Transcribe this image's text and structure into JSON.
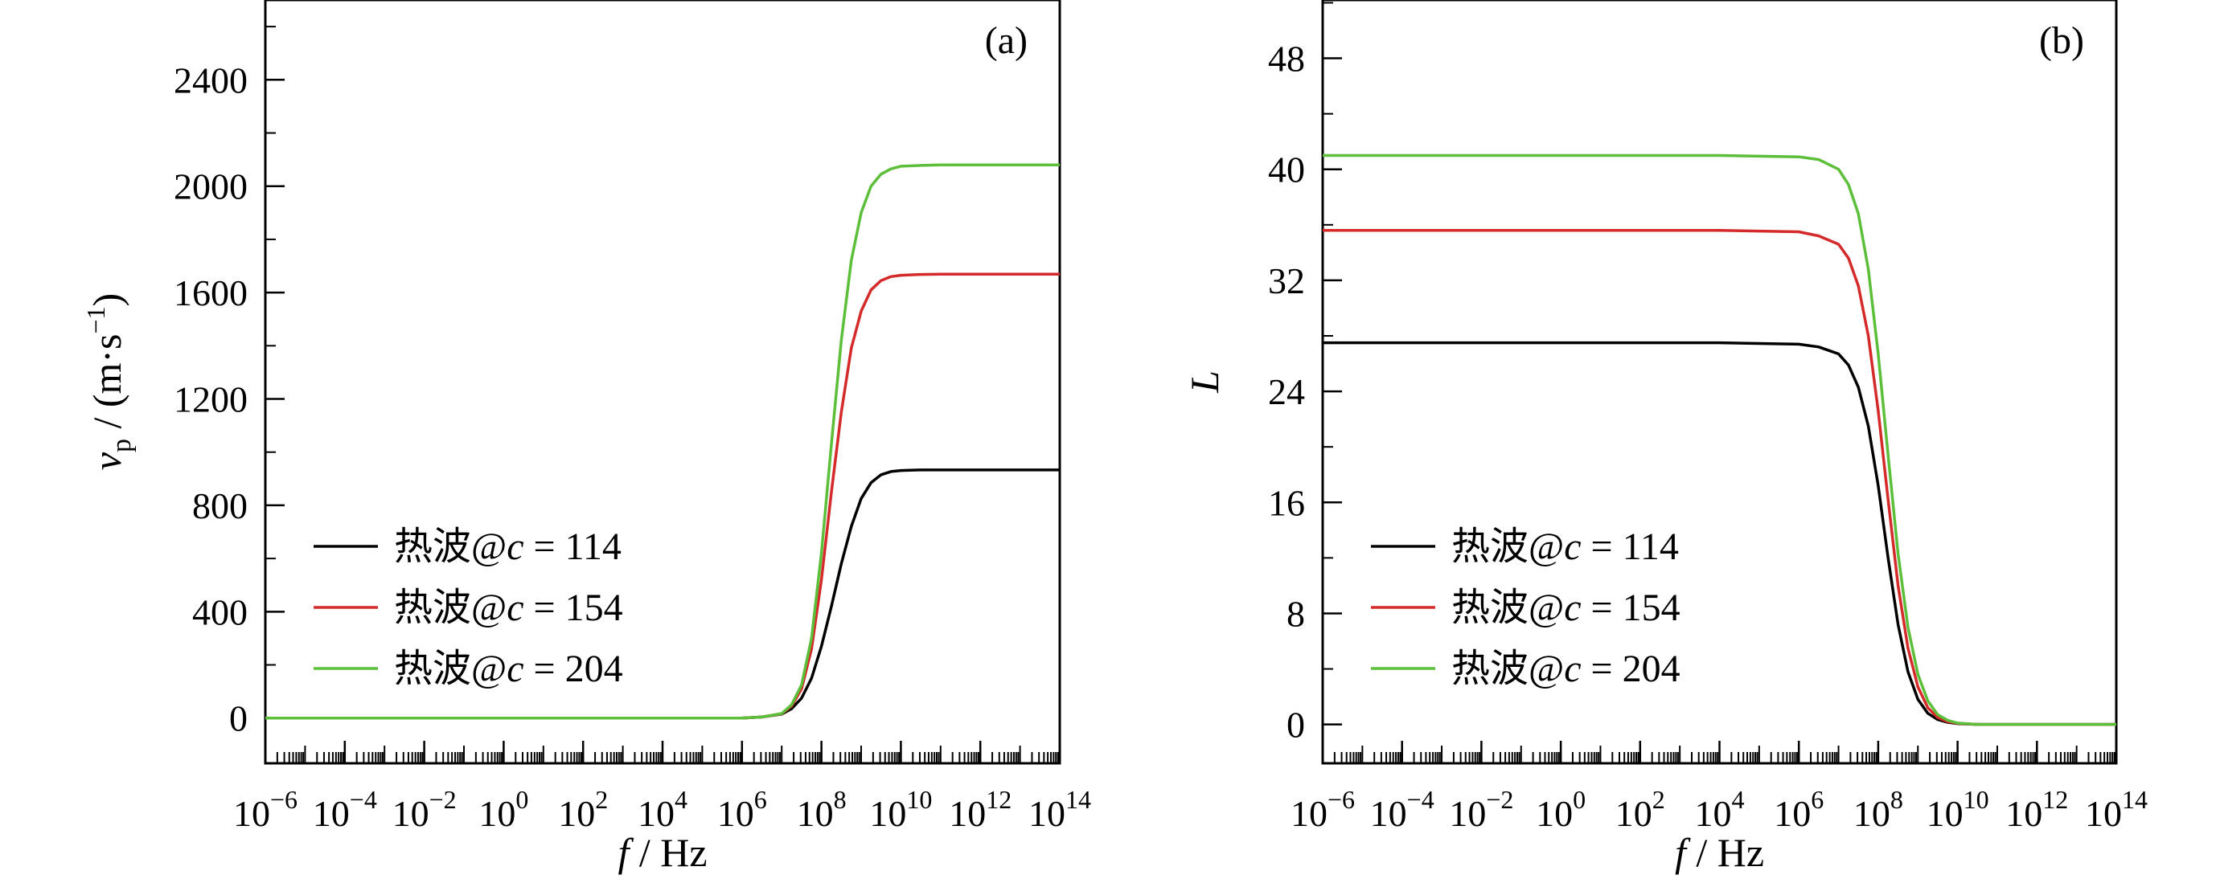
{
  "colors": {
    "black": "#000000",
    "red": "#d42a2a",
    "green": "#5cbf3a"
  },
  "chart_data": [
    {
      "type": "line",
      "panel_label": "(a)",
      "xlabel_var": "f",
      "xlabel_unit": " / Hz",
      "x_scale": "log",
      "xlim_exp": [
        -6,
        14
      ],
      "x_ticks_exp": [
        -6,
        -4,
        -2,
        0,
        2,
        4,
        6,
        8,
        10,
        12,
        14
      ],
      "ylabel_var": "v",
      "ylabel_sub": "p",
      "ylabel_unit_pre": " / (m·s",
      "ylabel_unit_sup": "−1",
      "ylabel_unit_post": ")",
      "ylim": [
        -170,
        2700
      ],
      "y_ticks": [
        0,
        400,
        800,
        1200,
        1600,
        2000,
        2400
      ],
      "grid": false,
      "legend_position": "lower-left",
      "series": [
        {
          "name_prefix": "热波@",
          "name_var": "c",
          "name_suffix": " = 114",
          "color": "#000000",
          "x_exp": [
            -6,
            -4,
            -2,
            0,
            2,
            4,
            6,
            6.5,
            7,
            7.25,
            7.5,
            7.75,
            8,
            8.25,
            8.5,
            8.75,
            9,
            9.25,
            9.5,
            9.75,
            10,
            10.5,
            11,
            12,
            13,
            14
          ],
          "values": [
            0,
            0,
            0,
            0,
            0,
            0,
            0,
            4,
            15,
            35,
            75,
            150,
            270,
            420,
            580,
            720,
            825,
            885,
            915,
            927,
            931,
            933,
            933,
            933,
            933,
            933
          ]
        },
        {
          "name_prefix": "热波@",
          "name_var": "c",
          "name_suffix": " = 154",
          "color": "#d42a2a",
          "x_exp": [
            -6,
            -4,
            -2,
            0,
            2,
            4,
            6,
            6.5,
            7,
            7.25,
            7.5,
            7.75,
            8,
            8.25,
            8.5,
            8.75,
            9,
            9.25,
            9.5,
            9.75,
            10,
            10.5,
            11,
            12,
            13,
            14
          ],
          "values": [
            0,
            0,
            0,
            0,
            0,
            0,
            0,
            4,
            16,
            45,
            110,
            260,
            520,
            850,
            1150,
            1390,
            1530,
            1610,
            1645,
            1660,
            1665,
            1668,
            1669,
            1669,
            1669,
            1669
          ]
        },
        {
          "name_prefix": "热波@",
          "name_var": "c",
          "name_suffix": " = 204",
          "color": "#5cbf3a",
          "x_exp": [
            -6,
            -4,
            -2,
            0,
            2,
            4,
            6,
            6.5,
            7,
            7.25,
            7.5,
            7.75,
            8,
            8.25,
            8.5,
            8.75,
            9,
            9.25,
            9.5,
            9.75,
            10,
            10.5,
            11,
            12,
            13,
            14
          ],
          "values": [
            0,
            0,
            0,
            0,
            0,
            0,
            0,
            4,
            17,
            50,
            125,
            300,
            620,
            1030,
            1420,
            1720,
            1900,
            2000,
            2045,
            2065,
            2075,
            2078,
            2080,
            2080,
            2080,
            2080
          ]
        }
      ]
    },
    {
      "type": "line",
      "panel_label": "(b)",
      "xlabel_var": "f",
      "xlabel_unit": " / Hz",
      "x_scale": "log",
      "xlim_exp": [
        -6,
        14
      ],
      "x_ticks_exp": [
        -6,
        -4,
        -2,
        0,
        2,
        4,
        6,
        8,
        10,
        12,
        14
      ],
      "ylabel_var": "L",
      "ylim": [
        -2.8,
        52.2
      ],
      "y_ticks": [
        0,
        8,
        16,
        24,
        32,
        40,
        48
      ],
      "grid": false,
      "legend_position": "lower-left",
      "series": [
        {
          "name_prefix": "热波@",
          "name_var": "c",
          "name_suffix": " = 114",
          "color": "#000000",
          "x_exp": [
            -6,
            -4,
            -2,
            0,
            2,
            4,
            6,
            6.5,
            7,
            7.25,
            7.5,
            7.75,
            8,
            8.25,
            8.5,
            8.75,
            9,
            9.25,
            9.5,
            9.75,
            10,
            10.5,
            11,
            12,
            13,
            14
          ],
          "values": [
            27.5,
            27.5,
            27.5,
            27.5,
            27.5,
            27.5,
            27.4,
            27.2,
            26.7,
            25.9,
            24.3,
            21.5,
            17.2,
            12.0,
            7.2,
            3.8,
            1.8,
            0.8,
            0.35,
            0.15,
            0.06,
            0,
            0,
            0,
            0,
            0
          ]
        },
        {
          "name_prefix": "热波@",
          "name_var": "c",
          "name_suffix": " = 154",
          "color": "#d42a2a",
          "x_exp": [
            -6,
            -4,
            -2,
            0,
            2,
            4,
            6,
            6.5,
            7,
            7.25,
            7.5,
            7.75,
            8,
            8.25,
            8.5,
            8.75,
            9,
            9.25,
            9.5,
            9.75,
            10,
            10.5,
            11,
            12,
            13,
            14
          ],
          "values": [
            35.6,
            35.6,
            35.6,
            35.6,
            35.6,
            35.6,
            35.5,
            35.2,
            34.6,
            33.6,
            31.6,
            28.0,
            22.6,
            16.2,
            10.0,
            5.5,
            2.7,
            1.2,
            0.5,
            0.2,
            0.08,
            0,
            0,
            0,
            0,
            0
          ]
        },
        {
          "name_prefix": "热波@",
          "name_var": "c",
          "name_suffix": " = 204",
          "color": "#5cbf3a",
          "x_exp": [
            -6,
            -4,
            -2,
            0,
            2,
            4,
            6,
            6.5,
            7,
            7.25,
            7.5,
            7.75,
            8,
            8.25,
            8.5,
            8.75,
            9,
            9.25,
            9.5,
            9.75,
            10,
            10.5,
            11,
            12,
            13,
            14
          ],
          "values": [
            41.0,
            41.0,
            41.0,
            41.0,
            41.0,
            41.0,
            40.9,
            40.7,
            40.0,
            38.9,
            36.8,
            32.8,
            26.7,
            19.4,
            12.3,
            7.0,
            3.6,
            1.7,
            0.7,
            0.3,
            0.1,
            0,
            0,
            0,
            0,
            0
          ]
        }
      ]
    }
  ]
}
